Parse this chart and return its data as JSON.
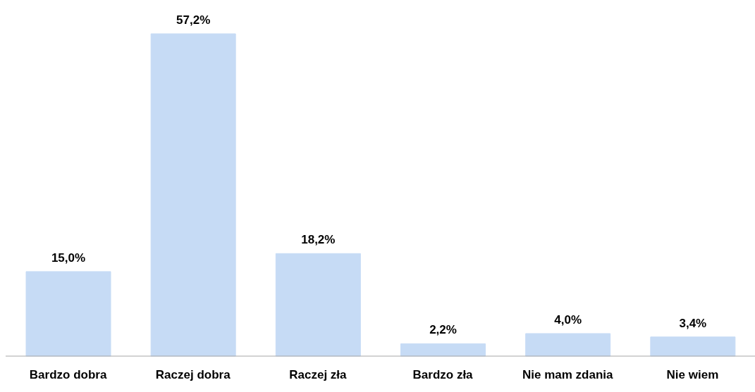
{
  "chart_data": {
    "type": "bar",
    "categories": [
      "Bardzo dobra",
      "Raczej dobra",
      "Raczej zła",
      "Bardzo zła",
      "Nie mam zdania",
      "Nie wiem"
    ],
    "values": [
      15.0,
      57.2,
      18.2,
      2.2,
      4.0,
      3.4
    ],
    "value_labels": [
      "15,0%",
      "57,2%",
      "18,2%",
      "2,2%",
      "4,0%",
      "3,4%"
    ],
    "color": "#c6dbf5",
    "grid": false,
    "legend": false
  }
}
